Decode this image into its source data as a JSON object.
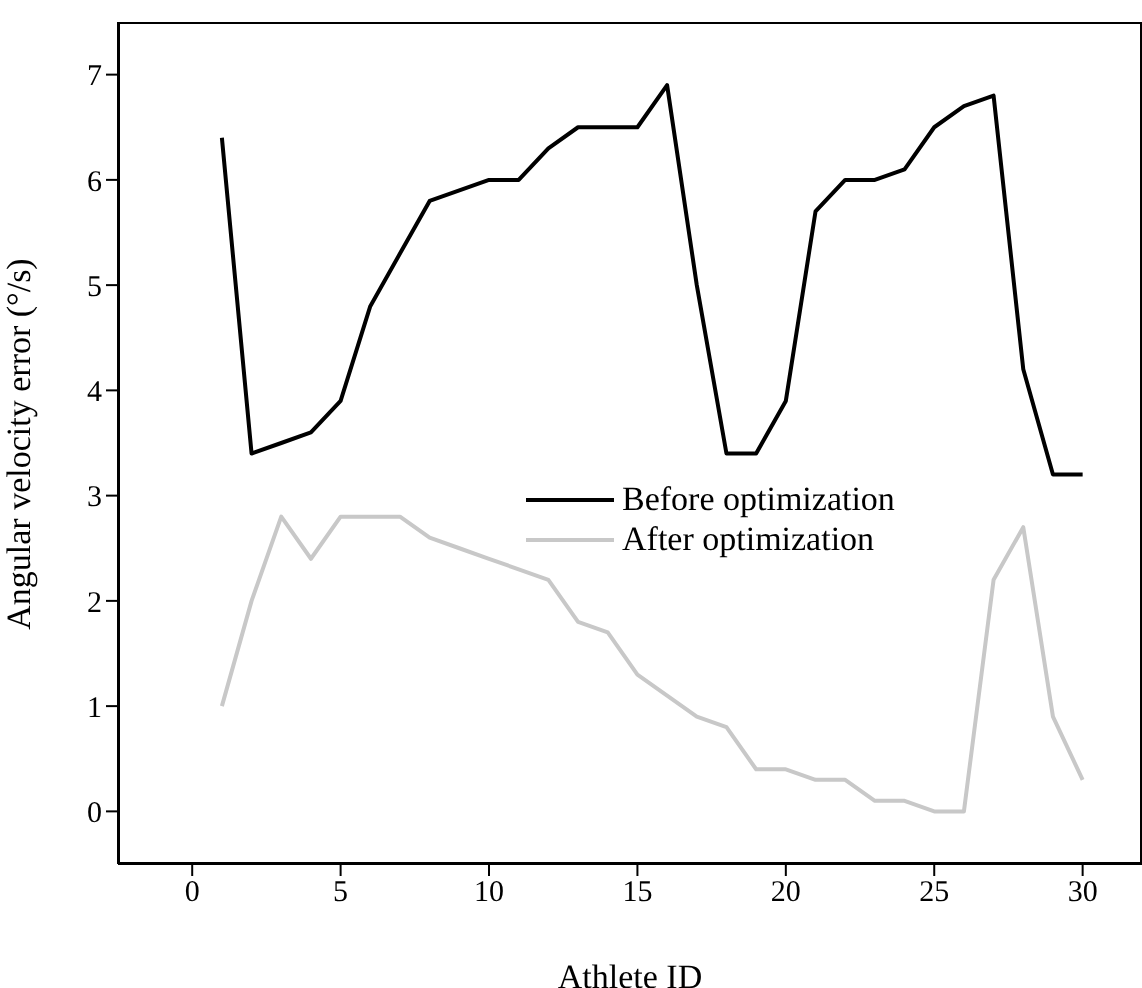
{
  "chart_data": {
    "type": "line",
    "xlabel": "Athlete ID",
    "ylabel": "Angular velocity error (°/s)",
    "x": [
      1,
      2,
      3,
      4,
      5,
      6,
      7,
      8,
      9,
      10,
      11,
      12,
      13,
      14,
      15,
      16,
      17,
      18,
      19,
      20,
      21,
      22,
      23,
      24,
      25,
      26,
      27,
      28,
      29,
      30
    ],
    "series": [
      {
        "name": "Before optimization",
        "color": "#000000",
        "values": [
          6.4,
          3.4,
          3.5,
          3.6,
          3.9,
          4.8,
          5.3,
          5.8,
          5.9,
          6.0,
          6.0,
          6.3,
          6.5,
          6.5,
          6.5,
          6.9,
          5.0,
          3.4,
          3.4,
          3.9,
          5.7,
          6.0,
          6.0,
          6.1,
          6.5,
          6.7,
          6.8,
          4.2,
          3.2,
          3.2
        ]
      },
      {
        "name": "After optimization",
        "color": "#c8c8c8",
        "values": [
          1.0,
          2.0,
          2.8,
          2.4,
          2.8,
          2.8,
          2.8,
          2.6,
          2.5,
          2.4,
          2.3,
          2.2,
          1.8,
          1.7,
          1.3,
          1.1,
          0.9,
          0.8,
          0.4,
          0.4,
          0.3,
          0.3,
          0.1,
          0.1,
          0.0,
          0.0,
          2.2,
          2.7,
          0.9,
          0.3
        ]
      }
    ],
    "xlim": [
      -2.5,
      32
    ],
    "xticks": [
      0,
      5,
      10,
      15,
      20,
      25,
      30
    ],
    "ylim": [
      -0.5,
      7.5
    ],
    "yticks": [
      0,
      1,
      2,
      3,
      4,
      5,
      6,
      7
    ],
    "legend": "right",
    "marker": "none",
    "line_style": "solid"
  }
}
